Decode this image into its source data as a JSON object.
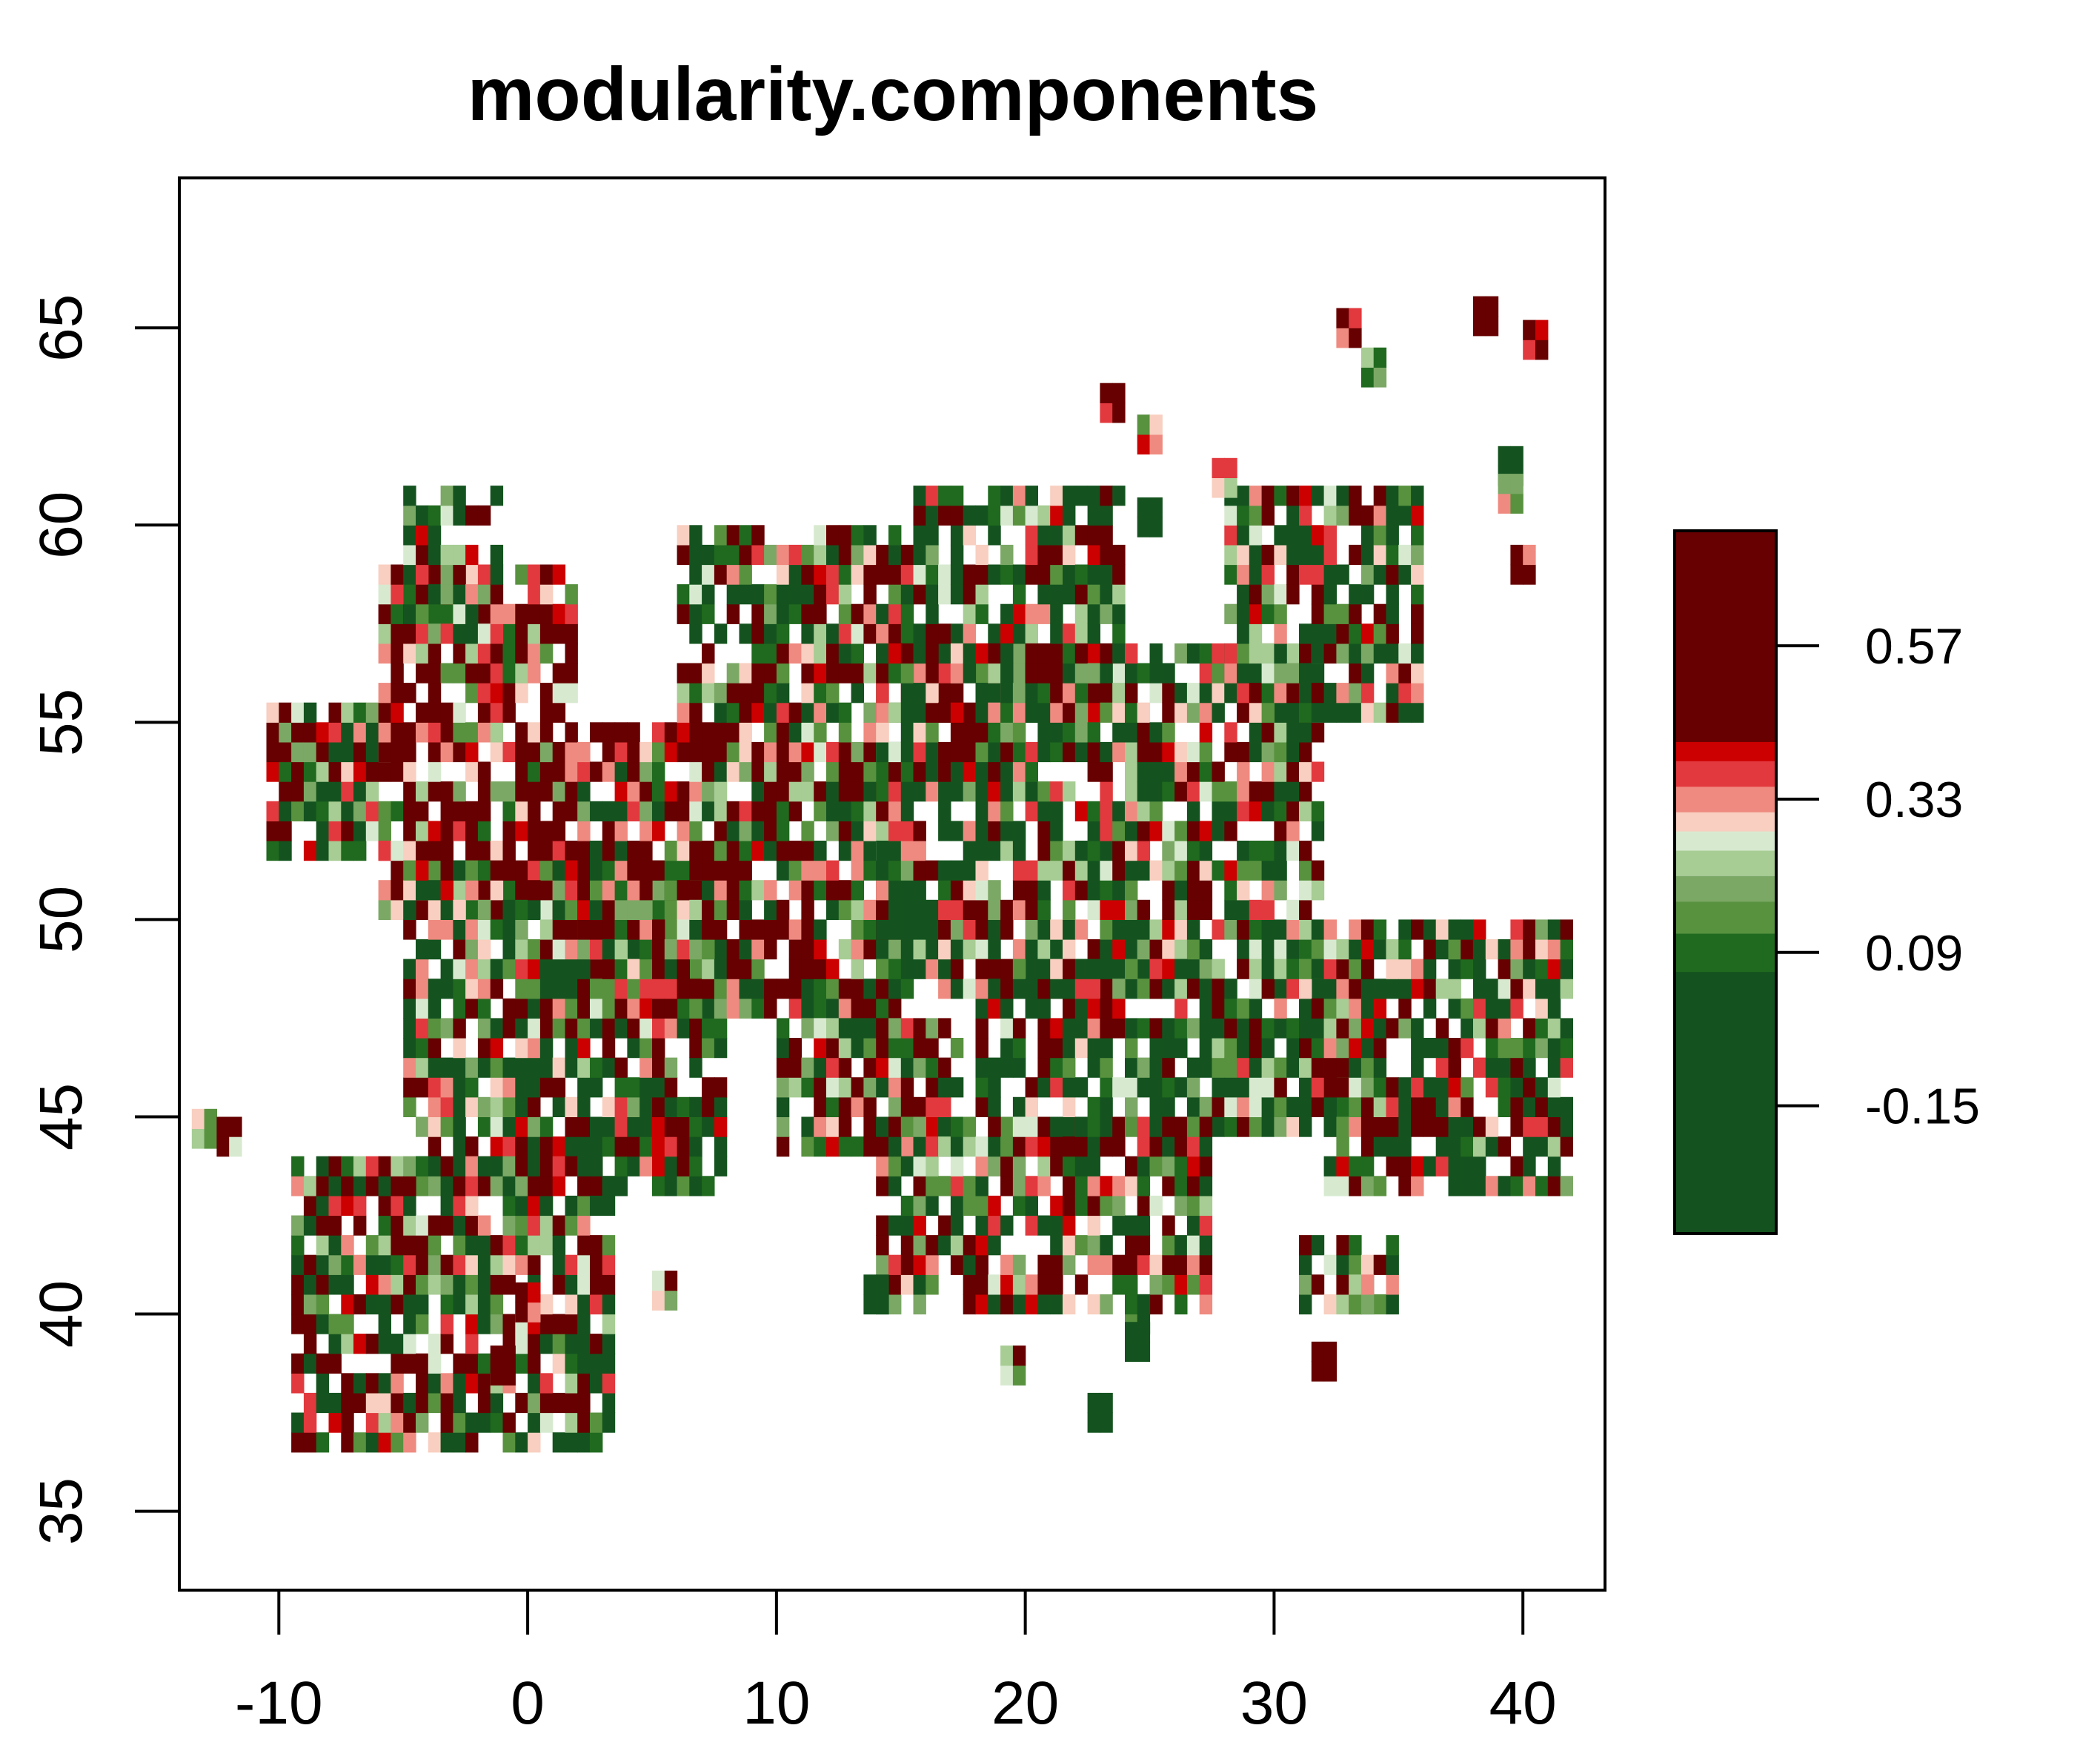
{
  "chart_data": {
    "type": "heatmap",
    "title": "modularity.components",
    "xlabel": "",
    "ylabel": "",
    "xlim": [
      -14,
      43.3
    ],
    "ylim": [
      33,
      68.8
    ],
    "x_ticks": [
      -10,
      0,
      10,
      20,
      30,
      40
    ],
    "x_tick_labels": [
      "-10",
      "0",
      "10",
      "20",
      "30",
      "40"
    ],
    "y_ticks": [
      35,
      40,
      45,
      50,
      55,
      60,
      65
    ],
    "y_tick_labels": [
      "35",
      "40",
      "45",
      "50",
      "55",
      "60",
      "65"
    ],
    "cell_size_deg": 0.5,
    "grid": false,
    "legend": {
      "position": "right",
      "value_range": [
        -0.35,
        0.75
      ],
      "bands": [
        {
          "from": -0.35,
          "to": 0.06,
          "color": "#14531f"
        },
        {
          "from": 0.06,
          "to": 0.12,
          "color": "#206a1f"
        },
        {
          "from": 0.12,
          "to": 0.17,
          "color": "#58923f"
        },
        {
          "from": 0.17,
          "to": 0.21,
          "color": "#7ba865"
        },
        {
          "from": 0.21,
          "to": 0.25,
          "color": "#a7cc94"
        },
        {
          "from": 0.25,
          "to": 0.28,
          "color": "#d7ead0"
        },
        {
          "from": 0.28,
          "to": 0.31,
          "color": "#f8cfc0"
        },
        {
          "from": 0.31,
          "to": 0.35,
          "color": "#ef8a80"
        },
        {
          "from": 0.35,
          "to": 0.39,
          "color": "#e2393e"
        },
        {
          "from": 0.39,
          "to": 0.42,
          "color": "#cc0000"
        },
        {
          "from": 0.42,
          "to": 0.75,
          "color": "#670000"
        }
      ],
      "ticks": [
        -0.15,
        0.09,
        0.33,
        0.57
      ],
      "tick_labels": [
        "-0.15",
        "0.09",
        "0.33",
        "0.57"
      ]
    },
    "regions_note_values_estimated": true,
    "value_range_observed": [
      -0.35,
      0.75
    ],
    "land_regions": [
      {
        "lon": [
          -10.5,
          -5.5
        ],
        "lat": [
          51.5,
          55.5
        ],
        "mean": 0.25
      },
      {
        "lon": [
          -6.0,
          2.0
        ],
        "lat": [
          50.0,
          59.0
        ],
        "mean": 0.45
      },
      {
        "lon": [
          -5.0,
          -1.0
        ],
        "lat": [
          57.0,
          61.0
        ],
        "mean": 0.2
      },
      {
        "lon": [
          -5.0,
          8.0
        ],
        "lat": [
          43.0,
          51.5
        ],
        "mean": 0.2
      },
      {
        "lon": [
          -9.5,
          3.5
        ],
        "lat": [
          36.5,
          43.8
        ],
        "mean": 0.25
      },
      {
        "lon": [
          2.0,
          15.0
        ],
        "lat": [
          47.5,
          55.0
        ],
        "mean": 0.32
      },
      {
        "lon": [
          6.0,
          15.0
        ],
        "lat": [
          55.0,
          60.0
        ],
        "mean": 0.3
      },
      {
        "lon": [
          15.0,
          24.0
        ],
        "lat": [
          55.0,
          61.0
        ],
        "mean": 0.22
      },
      {
        "lon": [
          14.0,
          32.0
        ],
        "lat": [
          48.0,
          57.0
        ],
        "mean": 0.2
      },
      {
        "lon": [
          28.0,
          36.0
        ],
        "lat": [
          55.0,
          61.0
        ],
        "mean": 0.18
      },
      {
        "lon": [
          18.0,
          33.0
        ],
        "lat": [
          44.5,
          49.0
        ],
        "mean": 0.18
      },
      {
        "lon": [
          32.0,
          42.0
        ],
        "lat": [
          43.0,
          50.0
        ],
        "mean": 0.22
      },
      {
        "lon": [
          10.0,
          17.5
        ],
        "lat": [
          44.0,
          47.5
        ],
        "mean": 0.3
      },
      {
        "lon": [
          14.0,
          27.5
        ],
        "lat": [
          40.0,
          45.0
        ],
        "mean": 0.28
      },
      {
        "lon": [
          31.0,
          35.0
        ],
        "lat": [
          40.0,
          42.0
        ],
        "mean": 0.2
      }
    ],
    "isolated_cells": [
      {
        "lon": 32.5,
        "lat": 64.5,
        "value": 0.4
      },
      {
        "lon": 33.5,
        "lat": 63.5,
        "value": 0.2
      },
      {
        "lon": 38.0,
        "lat": 64.8,
        "value": 0.7
      },
      {
        "lon": 40.0,
        "lat": 64.2,
        "value": 0.4
      },
      {
        "lon": 23.0,
        "lat": 62.6,
        "value": 0.5
      },
      {
        "lon": 24.5,
        "lat": 61.8,
        "value": 0.3
      },
      {
        "lon": 27.5,
        "lat": 60.7,
        "value": 0.3
      },
      {
        "lon": 24.5,
        "lat": 59.7,
        "value": -0.2
      },
      {
        "lon": 39.0,
        "lat": 61.0,
        "value": 0.0
      },
      {
        "lon": 39.5,
        "lat": 58.5,
        "value": 0.45
      },
      {
        "lon": 39.0,
        "lat": 60.3,
        "value": 0.3
      },
      {
        "lon": -13.5,
        "lat": 44.2,
        "value": 0.2
      },
      {
        "lon": -12.5,
        "lat": 44.0,
        "value": 0.4
      },
      {
        "lon": 5.0,
        "lat": 40.1,
        "value": 0.3
      },
      {
        "lon": 13.5,
        "lat": 40.0,
        "value": -0.1
      },
      {
        "lon": 24.0,
        "lat": 39.5,
        "value": 0.0
      },
      {
        "lon": 24.0,
        "lat": 38.8,
        "value": -0.2
      },
      {
        "lon": 19.0,
        "lat": 38.2,
        "value": 0.3
      },
      {
        "lon": 22.5,
        "lat": 37.0,
        "value": -0.1
      },
      {
        "lon": 31.5,
        "lat": 38.3,
        "value": 0.5
      },
      {
        "lon": -1.5,
        "lat": 38.2,
        "value": 0.6
      },
      {
        "lon": -0.5,
        "lat": 39.8,
        "value": 0.4
      },
      {
        "lon": 33.0,
        "lat": 40.0,
        "value": 0.3
      }
    ]
  }
}
